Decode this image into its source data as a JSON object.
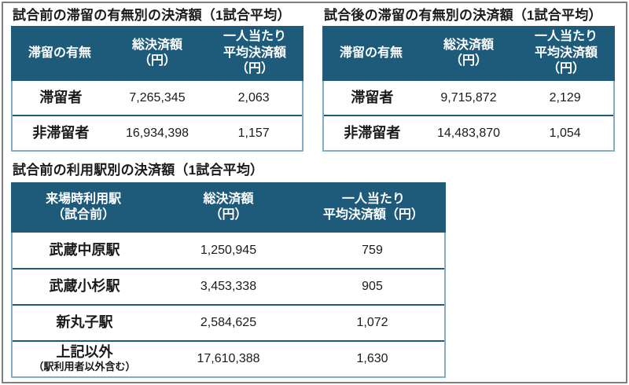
{
  "frame": {
    "border_color": "#7f7f7f"
  },
  "colors": {
    "header_bg": "#1E5B7B",
    "header_text": "#ffffff",
    "row_separator": "#1E5B7B",
    "table_outer_border": "#85AEC3",
    "title_text": "#1a1a1a",
    "body_text": "#1a1a1a",
    "page_bg": "#ffffff"
  },
  "tables": [
    {
      "id": "pre-match-stay",
      "title": "試合前の滞留の有無別の決済額（1試合平均）",
      "col_headers": [
        "滞留の有無",
        "総決済額\n（円）",
        "一人当たり\n平均決済額\n（円）"
      ],
      "rows": [
        {
          "label": "滞留者",
          "total": "7,265,345",
          "avg": "2,063"
        },
        {
          "label": "非滞留者",
          "total": "16,934,398",
          "avg": "1,157"
        }
      ]
    },
    {
      "id": "post-match-stay",
      "title": "試合後の滞留の有無別の決済額（1試合平均）",
      "col_headers": [
        "滞留の有無",
        "総決済額\n（円）",
        "一人当たり\n平均決済額\n（円）"
      ],
      "rows": [
        {
          "label": "滞留者",
          "total": "9,715,872",
          "avg": "2,129"
        },
        {
          "label": "非滞留者",
          "total": "14,483,870",
          "avg": "1,054"
        }
      ]
    },
    {
      "id": "pre-match-station",
      "title": "試合前の利用駅別の決済額（1試合平均）",
      "col_headers": [
        "来場時利用駅\n（試合前）",
        "総決済額\n（円）",
        "一人当たり\n平均決済額（円）"
      ],
      "rows": [
        {
          "label": "武蔵中原駅",
          "total": "1,250,945",
          "avg": "759"
        },
        {
          "label": "武蔵小杉駅",
          "total": "3,453,338",
          "avg": "905"
        },
        {
          "label": "新丸子駅",
          "total": "2,584,625",
          "avg": "1,072"
        },
        {
          "label": "上記以外",
          "sublabel": "（駅利用者以外含む）",
          "total": "17,610,388",
          "avg": "1,630"
        }
      ]
    }
  ]
}
